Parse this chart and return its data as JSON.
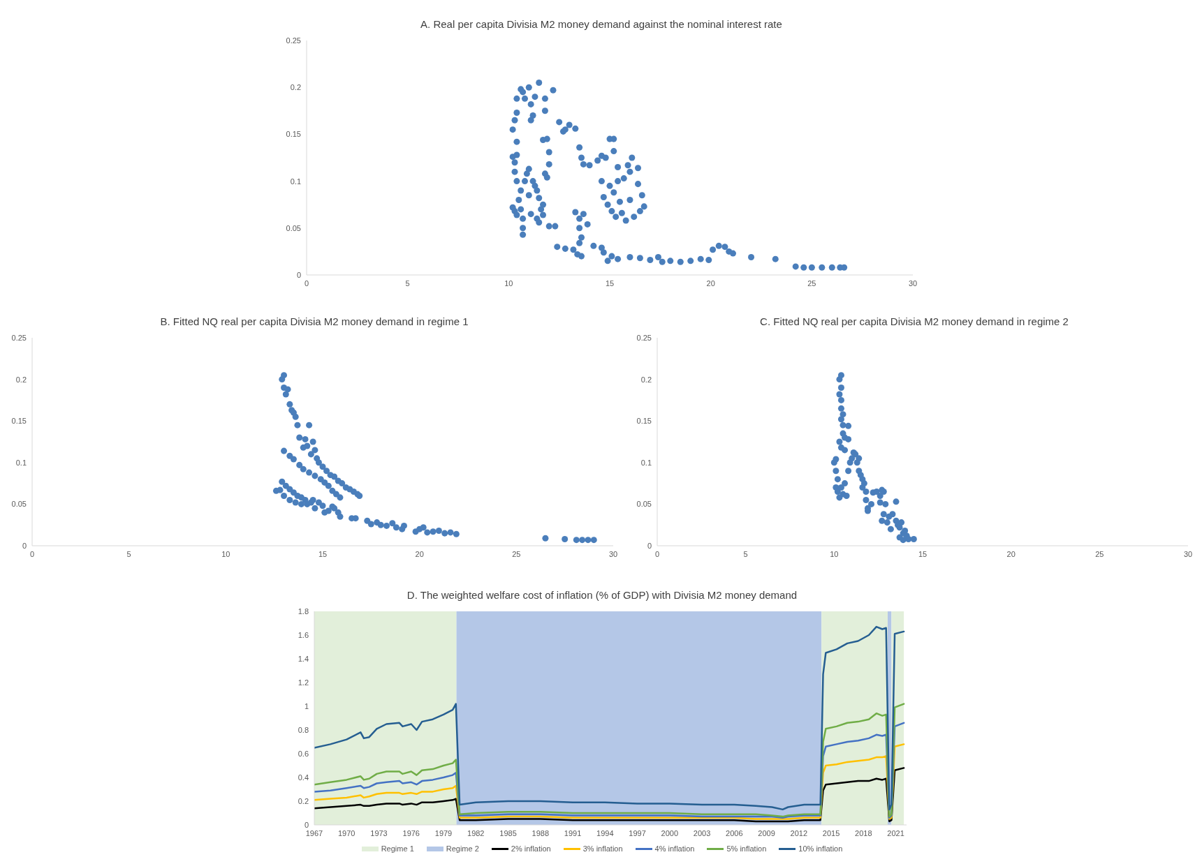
{
  "chart_data": [
    {
      "type": "scatter",
      "title": "A. Real per capita Divisia M2 money demand against the nominal interest rate",
      "color": "#4a7ebb",
      "marker": "circle",
      "x": [
        10.2,
        10.3,
        10.4,
        10.4,
        10.6,
        10.7,
        10.8,
        11.0,
        11.1,
        11.1,
        11.2,
        11.3,
        11.5,
        11.8,
        11.8,
        12.2,
        11.9,
        11.7,
        12.0,
        12.0,
        11.8,
        11.9,
        12.5,
        12.7,
        12.8,
        13.0,
        13.3,
        10.2,
        10.3,
        10.4,
        10.4,
        10.3,
        10.4,
        10.2,
        10.3,
        10.4,
        10.5,
        10.6,
        10.6,
        10.7,
        10.7,
        10.7,
        10.8,
        10.9,
        11.0,
        11.0,
        11.1,
        11.2,
        11.3,
        11.4,
        11.4,
        11.5,
        11.5,
        11.6,
        11.7,
        11.7,
        12.0,
        12.3,
        13.5,
        13.6,
        13.7,
        14.0,
        14.4,
        14.6,
        14.8,
        15.0,
        15.2,
        15.2,
        15.4,
        14.6,
        14.7,
        14.9,
        15.0,
        15.1,
        15.2,
        15.3,
        15.4,
        15.5,
        15.6,
        15.7,
        15.8,
        15.9,
        16.0,
        16.0,
        16.1,
        16.2,
        16.4,
        16.4,
        16.5,
        16.6,
        16.7,
        13.3,
        13.5,
        13.5,
        13.6,
        13.5,
        13.7,
        13.9,
        12.4,
        12.8,
        13.2,
        13.4,
        13.6,
        14.2,
        14.6,
        14.7,
        14.9,
        15.1,
        15.4,
        16.0,
        16.5,
        17.0,
        17.4,
        17.6,
        18.0,
        18.5,
        19.0,
        19.5,
        19.9,
        20.1,
        20.4,
        20.7,
        20.9,
        21.1,
        22.0,
        23.2,
        24.2,
        24.6,
        25.0,
        25.5,
        26.0,
        26.4,
        26.6
      ],
      "values": [
        0.155,
        0.165,
        0.173,
        0.188,
        0.198,
        0.195,
        0.188,
        0.2,
        0.182,
        0.165,
        0.17,
        0.19,
        0.205,
        0.175,
        0.188,
        0.197,
        0.145,
        0.144,
        0.131,
        0.118,
        0.108,
        0.104,
        0.163,
        0.153,
        0.155,
        0.16,
        0.156,
        0.126,
        0.12,
        0.142,
        0.128,
        0.11,
        0.1,
        0.072,
        0.068,
        0.064,
        0.08,
        0.09,
        0.07,
        0.06,
        0.05,
        0.043,
        0.1,
        0.108,
        0.113,
        0.085,
        0.065,
        0.1,
        0.095,
        0.09,
        0.06,
        0.082,
        0.056,
        0.07,
        0.075,
        0.064,
        0.052,
        0.052,
        0.136,
        0.125,
        0.118,
        0.117,
        0.122,
        0.127,
        0.125,
        0.145,
        0.145,
        0.132,
        0.115,
        0.1,
        0.083,
        0.075,
        0.095,
        0.068,
        0.088,
        0.062,
        0.1,
        0.078,
        0.066,
        0.103,
        0.058,
        0.117,
        0.08,
        0.11,
        0.125,
        0.062,
        0.097,
        0.114,
        0.068,
        0.085,
        0.073,
        0.067,
        0.06,
        0.05,
        0.04,
        0.034,
        0.065,
        0.054,
        0.03,
        0.028,
        0.027,
        0.022,
        0.02,
        0.031,
        0.029,
        0.024,
        0.015,
        0.02,
        0.017,
        0.019,
        0.018,
        0.016,
        0.019,
        0.014,
        0.015,
        0.014,
        0.015,
        0.017,
        0.016,
        0.027,
        0.031,
        0.03,
        0.025,
        0.023,
        0.019,
        0.017,
        0.009,
        0.008,
        0.008,
        0.008,
        0.008,
        0.008,
        0.008
      ],
      "xlim": [
        0,
        30
      ],
      "xticks": [
        0,
        5,
        10,
        15,
        20,
        25,
        30
      ],
      "ylim": [
        0,
        0.25
      ],
      "yticks": [
        0,
        0.05,
        0.1,
        0.15,
        0.2,
        0.25
      ]
    },
    {
      "type": "scatter",
      "title": "B. Fitted NQ real per capita Divisia M2 money demand in regime 1",
      "color": "#4a7ebb",
      "marker": "circle",
      "x": [
        12.9,
        13.0,
        13.0,
        13.1,
        13.2,
        13.3,
        13.4,
        13.5,
        13.6,
        13.7,
        13.8,
        14.0,
        14.1,
        14.2,
        14.3,
        14.4,
        14.5,
        14.6,
        14.7,
        14.8,
        15.0,
        15.2,
        15.4,
        15.6,
        15.8,
        16.0,
        16.2,
        16.4,
        16.6,
        16.8,
        16.9,
        13.0,
        13.3,
        13.5,
        13.8,
        14.0,
        14.3,
        14.6,
        14.9,
        15.1,
        15.3,
        15.5,
        15.7,
        15.9,
        12.6,
        12.8,
        12.9,
        13.1,
        13.3,
        13.5,
        13.7,
        13.9,
        14.1,
        13.0,
        13.3,
        13.6,
        13.9,
        14.2,
        14.4,
        14.5,
        14.6,
        14.8,
        15.0,
        15.1,
        15.3,
        15.5,
        15.6,
        15.8,
        15.9,
        16.5,
        16.7,
        17.3,
        17.5,
        17.8,
        18.0,
        18.3,
        18.6,
        18.8,
        19.1,
        19.2,
        19.8,
        20.0,
        20.2,
        20.4,
        20.7,
        21.0,
        21.3,
        21.6,
        21.9,
        26.5,
        27.5,
        28.1,
        28.4,
        28.7,
        29.0
      ],
      "values": [
        0.2,
        0.205,
        0.19,
        0.182,
        0.188,
        0.17,
        0.163,
        0.16,
        0.155,
        0.145,
        0.13,
        0.118,
        0.128,
        0.12,
        0.145,
        0.11,
        0.125,
        0.115,
        0.105,
        0.1,
        0.095,
        0.09,
        0.085,
        0.083,
        0.078,
        0.075,
        0.07,
        0.068,
        0.065,
        0.062,
        0.06,
        0.114,
        0.108,
        0.104,
        0.097,
        0.092,
        0.088,
        0.084,
        0.08,
        0.076,
        0.072,
        0.066,
        0.062,
        0.058,
        0.066,
        0.067,
        0.077,
        0.072,
        0.068,
        0.064,
        0.06,
        0.058,
        0.055,
        0.06,
        0.055,
        0.052,
        0.05,
        0.05,
        0.052,
        0.055,
        0.045,
        0.052,
        0.048,
        0.04,
        0.042,
        0.047,
        0.045,
        0.04,
        0.035,
        0.033,
        0.033,
        0.03,
        0.026,
        0.028,
        0.025,
        0.024,
        0.027,
        0.022,
        0.02,
        0.024,
        0.017,
        0.02,
        0.022,
        0.016,
        0.017,
        0.018,
        0.015,
        0.016,
        0.014,
        0.009,
        0.008,
        0.007,
        0.007,
        0.007,
        0.007
      ],
      "xlim": [
        0,
        30
      ],
      "xticks": [
        0,
        5,
        10,
        15,
        20,
        25,
        30
      ],
      "ylim": [
        0,
        0.25
      ],
      "yticks": [
        0,
        0.05,
        0.1,
        0.15,
        0.2,
        0.25
      ]
    },
    {
      "type": "scatter",
      "title": "C. Fitted NQ real per capita Divisia M2 money demand in regime 2",
      "color": "#4a7ebb",
      "marker": "circle",
      "x": [
        10.4,
        10.3,
        10.4,
        10.3,
        10.4,
        10.4,
        10.5,
        10.4,
        10.5,
        10.8,
        10.5,
        10.3,
        10.6,
        10.8,
        10.4,
        10.6,
        10.1,
        10.0,
        10.1,
        10.2,
        10.1,
        10.2,
        10.3,
        10.4,
        10.5,
        10.6,
        10.7,
        10.8,
        10.9,
        11.0,
        11.1,
        11.2,
        11.3,
        11.4,
        11.4,
        11.5,
        11.6,
        11.6,
        11.7,
        11.8,
        11.8,
        11.9,
        11.9,
        12.1,
        12.2,
        12.4,
        12.6,
        12.7,
        12.8,
        12.6,
        12.9,
        12.7,
        12.8,
        13.0,
        13.1,
        13.3,
        13.2,
        13.5,
        13.5,
        13.6,
        13.7,
        13.8,
        13.9,
        13.7,
        13.9,
        14.0,
        14.1,
        14.2,
        14.5
      ],
      "values": [
        0.205,
        0.2,
        0.19,
        0.182,
        0.175,
        0.165,
        0.158,
        0.152,
        0.145,
        0.144,
        0.135,
        0.125,
        0.13,
        0.128,
        0.118,
        0.115,
        0.104,
        0.1,
        0.09,
        0.08,
        0.07,
        0.065,
        0.058,
        0.07,
        0.062,
        0.075,
        0.06,
        0.09,
        0.1,
        0.105,
        0.112,
        0.11,
        0.1,
        0.105,
        0.09,
        0.085,
        0.08,
        0.07,
        0.075,
        0.065,
        0.055,
        0.045,
        0.042,
        0.05,
        0.064,
        0.065,
        0.06,
        0.067,
        0.065,
        0.052,
        0.05,
        0.03,
        0.038,
        0.028,
        0.035,
        0.038,
        0.02,
        0.053,
        0.03,
        0.025,
        0.022,
        0.028,
        0.015,
        0.01,
        0.007,
        0.018,
        0.012,
        0.008,
        0.008
      ],
      "xlim": [
        0,
        30
      ],
      "xticks": [
        0,
        5,
        10,
        15,
        20,
        25,
        30
      ],
      "ylim": [
        0,
        0.25
      ],
      "yticks": [
        0,
        0.05,
        0.1,
        0.15,
        0.2,
        0.25
      ]
    },
    {
      "type": "line",
      "title": "D. The weighted welfare cost of inflation (% of GDP) with Divisia M2 money demand",
      "legend": "bottom",
      "x": [
        1967,
        1968.5,
        1970,
        1971.3,
        1971.6,
        1972.1,
        1972.8,
        1973.7,
        1974.9,
        1975.2,
        1976,
        1976.5,
        1977,
        1978,
        1979,
        1979.85,
        1980.15,
        1980.5,
        1982,
        1985,
        1988,
        1991,
        1994,
        1997,
        2000,
        2003,
        2006,
        2008,
        2009.5,
        2010.5,
        2011,
        2012.5,
        2014,
        2014.25,
        2014.5,
        2015.5,
        2016.5,
        2017.5,
        2018.5,
        2019.2,
        2019.75,
        2020.1,
        2020.4,
        2020.6,
        2020.9,
        2021.75
      ],
      "series": [
        {
          "name": "2% inflation",
          "color": "#000000",
          "values": [
            0.14,
            0.15,
            0.16,
            0.17,
            0.16,
            0.16,
            0.17,
            0.18,
            0.18,
            0.17,
            0.18,
            0.17,
            0.19,
            0.19,
            0.2,
            0.21,
            0.22,
            0.04,
            0.04,
            0.05,
            0.05,
            0.04,
            0.04,
            0.04,
            0.04,
            0.04,
            0.04,
            0.03,
            0.03,
            0.03,
            0.03,
            0.04,
            0.04,
            0.29,
            0.34,
            0.35,
            0.36,
            0.37,
            0.37,
            0.39,
            0.38,
            0.39,
            0.03,
            0.04,
            0.46,
            0.48
          ]
        },
        {
          "name": "3% inflation",
          "color": "#ffc000",
          "values": [
            0.21,
            0.22,
            0.23,
            0.25,
            0.23,
            0.24,
            0.26,
            0.27,
            0.27,
            0.26,
            0.27,
            0.26,
            0.28,
            0.28,
            0.3,
            0.31,
            0.33,
            0.06,
            0.06,
            0.07,
            0.07,
            0.06,
            0.06,
            0.06,
            0.06,
            0.06,
            0.06,
            0.05,
            0.05,
            0.05,
            0.05,
            0.06,
            0.06,
            0.44,
            0.5,
            0.51,
            0.53,
            0.54,
            0.55,
            0.57,
            0.57,
            0.58,
            0.05,
            0.06,
            0.66,
            0.68
          ]
        },
        {
          "name": "4% inflation",
          "color": "#4472c4",
          "values": [
            0.28,
            0.29,
            0.31,
            0.33,
            0.31,
            0.32,
            0.35,
            0.36,
            0.37,
            0.35,
            0.36,
            0.34,
            0.37,
            0.38,
            0.4,
            0.42,
            0.44,
            0.08,
            0.08,
            0.09,
            0.09,
            0.08,
            0.08,
            0.08,
            0.08,
            0.07,
            0.07,
            0.07,
            0.07,
            0.06,
            0.07,
            0.08,
            0.08,
            0.58,
            0.66,
            0.68,
            0.7,
            0.71,
            0.73,
            0.76,
            0.75,
            0.76,
            0.06,
            0.08,
            0.83,
            0.86
          ]
        },
        {
          "name": "5% inflation",
          "color": "#70ad47",
          "values": [
            0.34,
            0.36,
            0.38,
            0.41,
            0.38,
            0.39,
            0.43,
            0.45,
            0.45,
            0.43,
            0.45,
            0.42,
            0.46,
            0.47,
            0.5,
            0.52,
            0.55,
            0.09,
            0.1,
            0.11,
            0.11,
            0.1,
            0.1,
            0.1,
            0.1,
            0.09,
            0.09,
            0.09,
            0.08,
            0.07,
            0.08,
            0.09,
            0.09,
            0.7,
            0.81,
            0.83,
            0.86,
            0.87,
            0.89,
            0.94,
            0.92,
            0.93,
            0.07,
            0.09,
            0.99,
            1.02
          ]
        },
        {
          "name": "10% inflation",
          "color": "#255e91",
          "values": [
            0.65,
            0.68,
            0.72,
            0.78,
            0.73,
            0.74,
            0.81,
            0.85,
            0.86,
            0.83,
            0.85,
            0.8,
            0.87,
            0.89,
            0.93,
            0.97,
            1.02,
            0.17,
            0.19,
            0.2,
            0.2,
            0.19,
            0.19,
            0.18,
            0.18,
            0.17,
            0.17,
            0.16,
            0.15,
            0.13,
            0.15,
            0.17,
            0.17,
            1.27,
            1.45,
            1.48,
            1.53,
            1.55,
            1.6,
            1.67,
            1.65,
            1.66,
            0.13,
            0.17,
            1.61,
            1.63
          ]
        }
      ],
      "bands": [
        {
          "axis": "x",
          "from": 1967,
          "to": 1980.2,
          "label": "Regime 1",
          "color": "#e2efda"
        },
        {
          "axis": "x",
          "from": 1980.2,
          "to": 2014.1,
          "label": "Regime 2",
          "color": "#b4c7e7"
        },
        {
          "axis": "x",
          "from": 2014.1,
          "to": 2020.25,
          "color": "#e2efda"
        },
        {
          "axis": "x",
          "from": 2020.25,
          "to": 2020.6,
          "color": "#b4c7e7"
        },
        {
          "axis": "x",
          "from": 2020.6,
          "to": 2021.75,
          "color": "#e2efda"
        }
      ],
      "xlim": [
        1967,
        2022
      ],
      "xticks": [
        1967,
        1970,
        1973,
        1976,
        1979,
        1982,
        1985,
        1988,
        1991,
        1994,
        1997,
        2000,
        2003,
        2006,
        2009,
        2012,
        2015,
        2018,
        2021
      ],
      "ylim": [
        0,
        1.8
      ],
      "yticks": [
        0,
        0.2,
        0.4,
        0.6,
        0.8,
        1,
        1.2,
        1.4,
        1.6,
        1.8
      ]
    }
  ]
}
